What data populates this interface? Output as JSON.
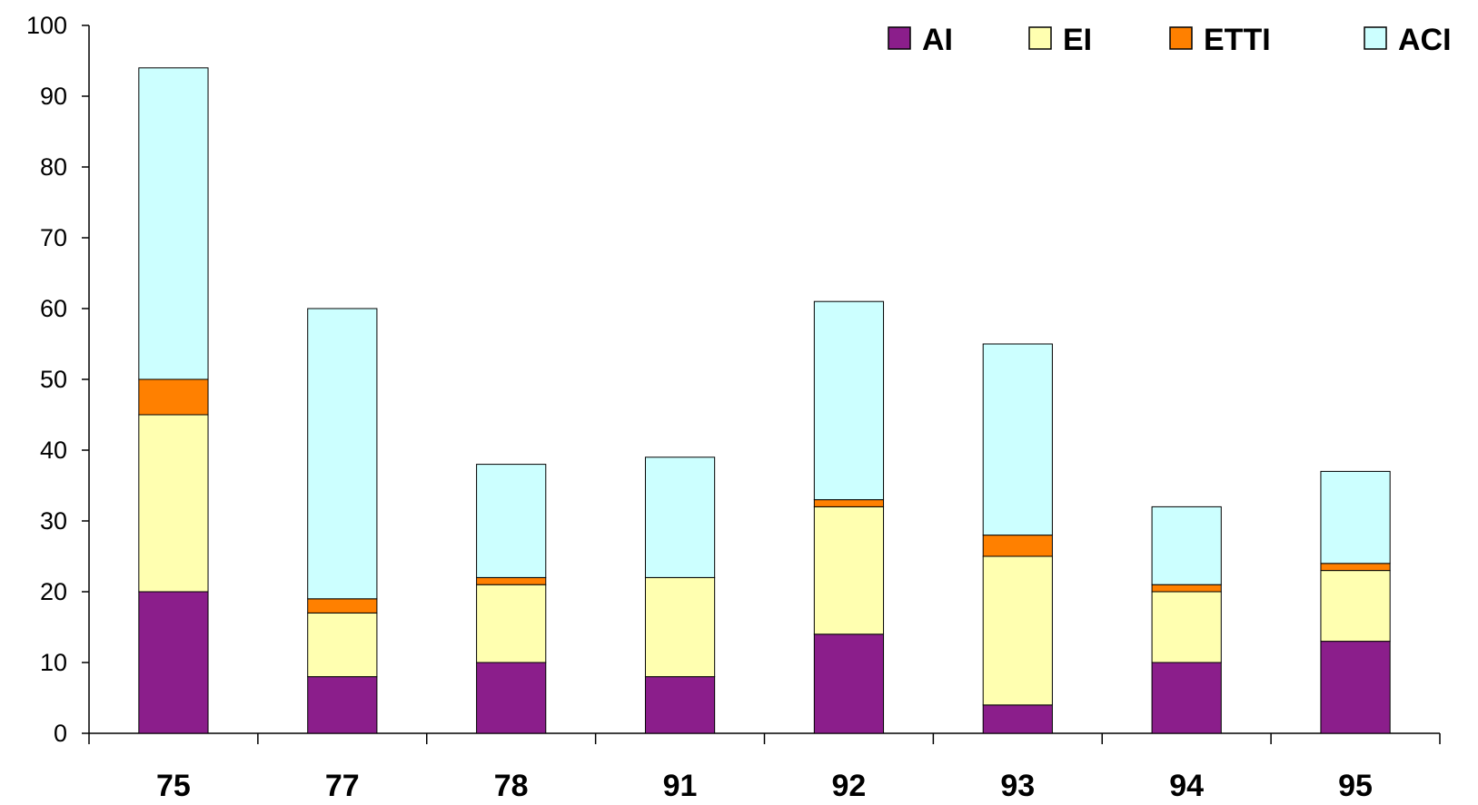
{
  "chart_data": {
    "type": "bar",
    "stacked": true,
    "categories": [
      "75",
      "77",
      "78",
      "91",
      "92",
      "93",
      "94",
      "95"
    ],
    "series": [
      {
        "name": "AI",
        "color": "#8B1E8B",
        "values": [
          20,
          8,
          10,
          8,
          14,
          4,
          10,
          13
        ]
      },
      {
        "name": "EI",
        "color": "#FFFFB0",
        "values": [
          25,
          9,
          11,
          14,
          18,
          21,
          10,
          10
        ]
      },
      {
        "name": "ETTI",
        "color": "#FF8000",
        "values": [
          5,
          2,
          1,
          0,
          1,
          3,
          1,
          1
        ]
      },
      {
        "name": "ACI",
        "color": "#CCFFFF",
        "values": [
          44,
          41,
          16,
          17,
          28,
          27,
          11,
          13
        ]
      }
    ],
    "ylim": [
      0,
      100
    ],
    "yticks": [
      "0",
      "10",
      "20",
      "30",
      "40",
      "50",
      "60",
      "70",
      "80",
      "90",
      "100"
    ],
    "xlabel": "",
    "ylabel": "",
    "title": "",
    "grid": false,
    "legend_position": "top-right"
  }
}
